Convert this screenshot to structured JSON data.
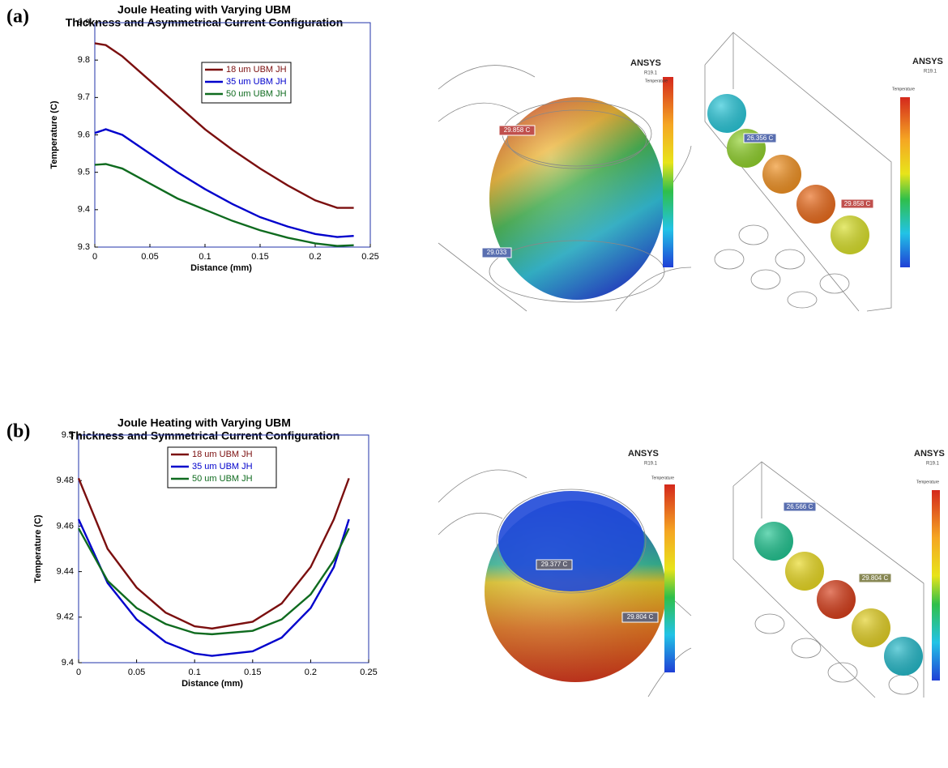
{
  "labels": {
    "a": "(a)",
    "b": "(b)"
  },
  "chart_data": [
    {
      "type": "line",
      "title": [
        "Joule Heating with Varying UBM",
        "Thickness and Asymmetrical Current Configuration"
      ],
      "x_label": "Distance (mm)",
      "y_label": "Temperature (C)",
      "x": [
        0,
        0.01,
        0.025,
        0.05,
        0.075,
        0.1,
        0.125,
        0.15,
        0.175,
        0.2,
        0.22,
        0.235
      ],
      "series": [
        {
          "name": "18 um UBM JH",
          "color": "#7b0f0f",
          "values": [
            9.845,
            9.84,
            9.81,
            9.745,
            9.68,
            9.615,
            9.56,
            9.51,
            9.465,
            9.425,
            9.405,
            9.405
          ]
        },
        {
          "name": "35 um UBM JH",
          "color": "#0000cc",
          "values": [
            9.605,
            9.615,
            9.6,
            9.55,
            9.5,
            9.455,
            9.415,
            9.38,
            9.355,
            9.335,
            9.327,
            9.33
          ]
        },
        {
          "name": "50 um UBM JH",
          "color": "#0f6b1f",
          "values": [
            9.52,
            9.522,
            9.51,
            9.47,
            9.43,
            9.4,
            9.37,
            9.345,
            9.325,
            9.31,
            9.303,
            9.305
          ]
        }
      ],
      "xlim": [
        0,
        0.25
      ],
      "ylim": [
        9.3,
        9.9
      ],
      "xticks": [
        0,
        0.05,
        0.1,
        0.15,
        0.2,
        0.25
      ],
      "yticks": [
        9.3,
        9.4,
        9.5,
        9.6,
        9.7,
        9.8,
        9.9
      ]
    },
    {
      "type": "line",
      "title": [
        "Joule Heating with Varying UBM",
        "Thickness and Symmetrical Current Configuration"
      ],
      "x_label": "Distance (mm)",
      "y_label": "Temperature (C)",
      "x": [
        0,
        0.025,
        0.05,
        0.075,
        0.1,
        0.115,
        0.15,
        0.175,
        0.2,
        0.22,
        0.233
      ],
      "series": [
        {
          "name": "18 um UBM JH",
          "color": "#7b0f0f",
          "values": [
            9.481,
            9.45,
            9.433,
            9.422,
            9.416,
            9.415,
            9.418,
            9.426,
            9.442,
            9.463,
            9.481
          ]
        },
        {
          "name": "35 um UBM JH",
          "color": "#0000cc",
          "values": [
            9.463,
            9.435,
            9.419,
            9.409,
            9.404,
            9.403,
            9.405,
            9.411,
            9.424,
            9.442,
            9.463
          ]
        },
        {
          "name": "50 um UBM JH",
          "color": "#0f6b1f",
          "values": [
            9.459,
            9.436,
            9.424,
            9.417,
            9.413,
            9.4125,
            9.414,
            9.419,
            9.43,
            9.445,
            9.459
          ]
        }
      ],
      "xlim": [
        0,
        0.25
      ],
      "ylim": [
        9.4,
        9.5
      ],
      "xticks": [
        0,
        0.05,
        0.1,
        0.15,
        0.2,
        0.25
      ],
      "yticks": [
        9.4,
        9.42,
        9.44,
        9.46,
        9.48,
        9.5
      ]
    }
  ],
  "renders": [
    {
      "brand": "ANSYS",
      "version": "R19.1",
      "legend_title": "Temperature",
      "probes": [
        "29.858 C",
        "29.033"
      ]
    },
    {
      "brand": "ANSYS",
      "version": "R19.1",
      "legend_title": "Temperature",
      "probes": [
        "26.356 C",
        "29.858 C"
      ]
    },
    {
      "brand": "ANSYS",
      "version": "R19.1",
      "legend_title": "Temperature",
      "probes": [
        "29.377 C",
        "29.804 C"
      ]
    },
    {
      "brand": "ANSYS",
      "version": "R19.1",
      "legend_title": "Temperature",
      "probes": [
        "26.566 C",
        "29.804 C"
      ]
    }
  ]
}
